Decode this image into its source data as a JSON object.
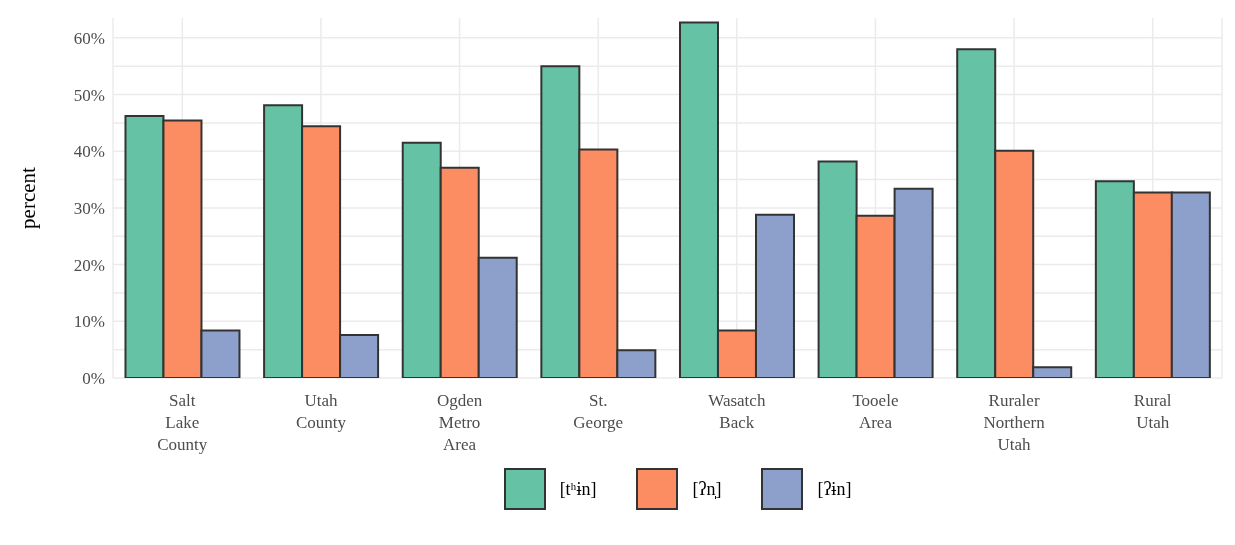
{
  "chart_data": {
    "type": "bar",
    "ylabel": "percent",
    "categories": [
      "Salt Lake County",
      "Utah County",
      "Ogden Metro Area",
      "St. George",
      "Wasatch Back",
      "Tooele Area",
      "Ruraler Northern Utah",
      "Rural Utah"
    ],
    "series": [
      {
        "name": "[tʰɨn]",
        "color": "#66c2a5",
        "values": [
          46.2,
          48.1,
          41.5,
          55.0,
          62.7,
          38.2,
          58.0,
          34.7
        ]
      },
      {
        "name": "[ʔn̩]",
        "color": "#fc8d62",
        "values": [
          45.4,
          44.4,
          37.1,
          40.3,
          8.4,
          28.6,
          40.1,
          32.7
        ]
      },
      {
        "name": "[ʔɨn]",
        "color": "#8da0cb",
        "values": [
          8.4,
          7.6,
          21.2,
          4.9,
          28.8,
          33.4,
          1.9,
          32.7
        ]
      }
    ],
    "ylim": [
      0,
      63.5
    ],
    "yticks": [
      {
        "value": 0,
        "label": "0%"
      },
      {
        "value": 10,
        "label": "10%"
      },
      {
        "value": 20,
        "label": "20%"
      },
      {
        "value": 30,
        "label": "30%"
      },
      {
        "value": 40,
        "label": "40%"
      },
      {
        "value": 50,
        "label": "50%"
      },
      {
        "value": 60,
        "label": "60%"
      }
    ],
    "grid": true,
    "legend": "bottom"
  }
}
